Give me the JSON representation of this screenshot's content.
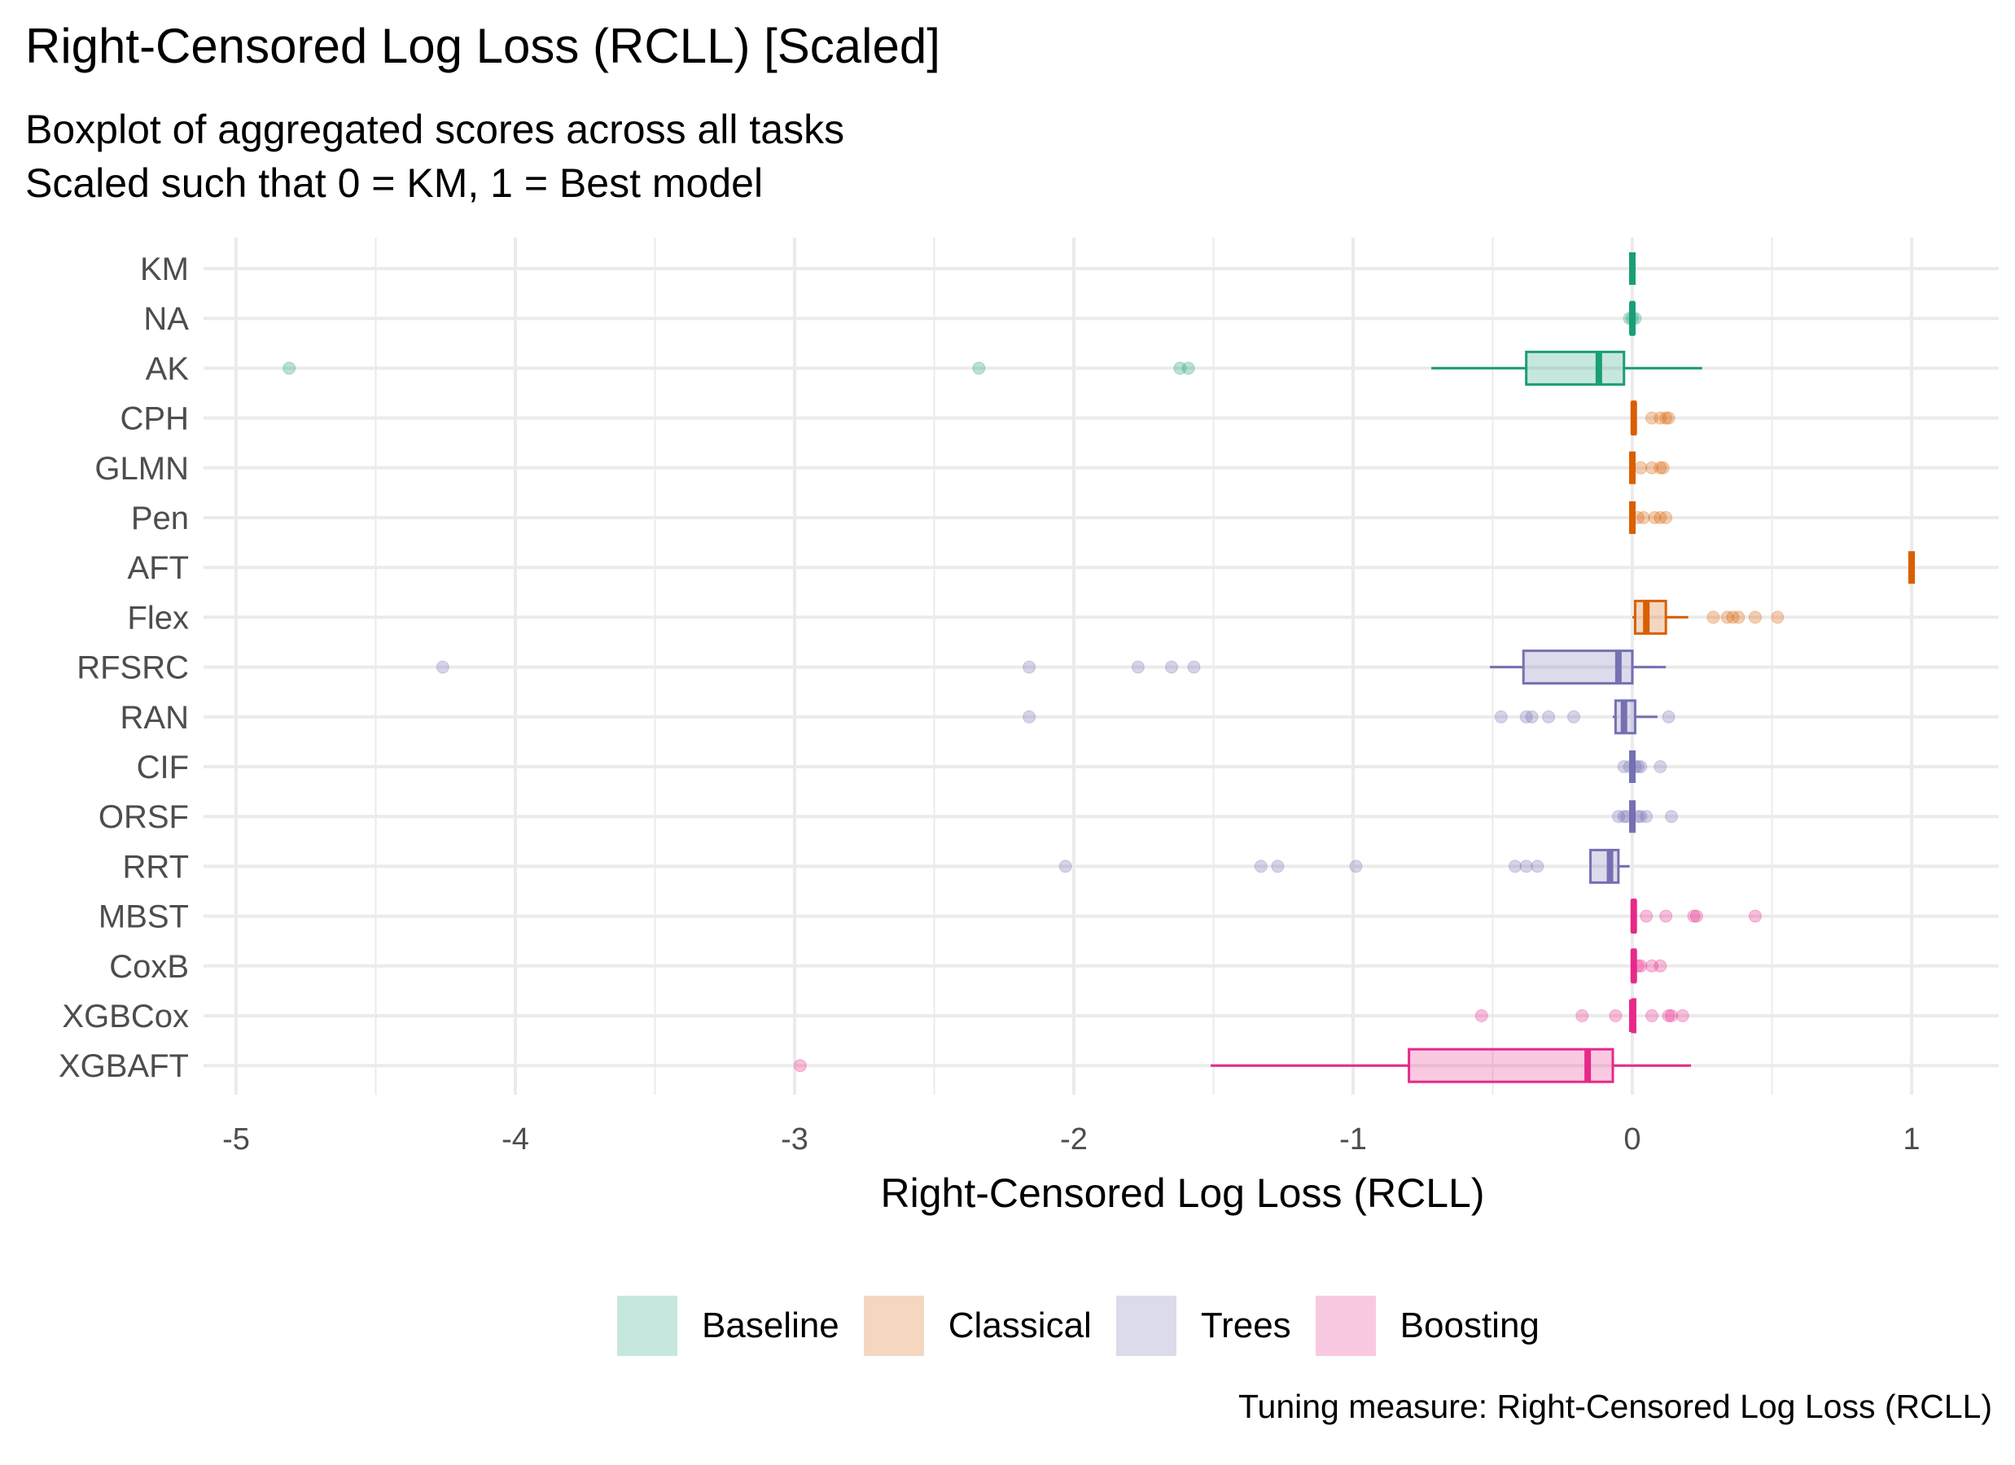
{
  "chart_data": {
    "type": "boxplot",
    "title": "Right-Censored Log Loss (RCLL) [Scaled]",
    "subtitle": [
      "Boxplot of aggregated scores across all tasks",
      "Scaled such that 0 = KM, 1 = Best model"
    ],
    "xlabel": "Right-Censored Log Loss (RCLL)",
    "ylabel": "",
    "caption": "Tuning measure: Right-Censored Log Loss (RCLL)",
    "xlim": [
      -5.08,
      1.28
    ],
    "xticks": [
      -5,
      -4,
      -3,
      -2,
      -1,
      0,
      1
    ],
    "xtick_labels": [
      "-5",
      "-4",
      "-3",
      "-2",
      "-1",
      "0",
      "1"
    ],
    "legend": {
      "position": "bottom",
      "entries": [
        "Baseline",
        "Classical",
        "Trees",
        "Boosting"
      ]
    },
    "group_colors": {
      "Baseline": "#1b9e77",
      "Classical": "#d95f02",
      "Trees": "#7570b3",
      "Boosting": "#e7298a"
    },
    "grid": true,
    "models": [
      {
        "name": "KM",
        "group": "Baseline",
        "whisker_low": 0,
        "q1": 0,
        "median": 0,
        "q3": 0,
        "whisker_high": 0,
        "outliers": []
      },
      {
        "name": "NA",
        "group": "Baseline",
        "whisker_low": -0.01,
        "q1": -0.005,
        "median": 0,
        "q3": 0.005,
        "whisker_high": 0.01,
        "outliers": [
          -0.01,
          0.0,
          0.01
        ]
      },
      {
        "name": "AK",
        "group": "Baseline",
        "whisker_low": -0.72,
        "q1": -0.38,
        "median": -0.12,
        "q3": -0.03,
        "whisker_high": 0.25,
        "outliers": [
          -4.81,
          -2.34,
          -1.62,
          -1.59
        ]
      },
      {
        "name": "CPH",
        "group": "Classical",
        "whisker_low": 0,
        "q1": 0,
        "median": 0.005,
        "q3": 0.01,
        "whisker_high": 0.01,
        "outliers": [
          0.07,
          0.1,
          0.12,
          0.13
        ]
      },
      {
        "name": "GLMN",
        "group": "Classical",
        "whisker_low": 0,
        "q1": 0,
        "median": 0,
        "q3": 0.005,
        "whisker_high": 0.005,
        "outliers": [
          0.03,
          0.07,
          0.1,
          0.11
        ]
      },
      {
        "name": "Pen",
        "group": "Classical",
        "whisker_low": 0,
        "q1": 0,
        "median": 0,
        "q3": 0.005,
        "whisker_high": 0.005,
        "outliers": [
          0.02,
          0.04,
          0.08,
          0.1,
          0.12
        ]
      },
      {
        "name": "AFT",
        "group": "Classical",
        "whisker_low": 1,
        "q1": 1,
        "median": 1,
        "q3": 1,
        "whisker_high": 1,
        "outliers": []
      },
      {
        "name": "Flex",
        "group": "Classical",
        "whisker_low": 0,
        "q1": 0.01,
        "median": 0.05,
        "q3": 0.12,
        "whisker_high": 0.2,
        "outliers": [
          0.29,
          0.34,
          0.36,
          0.38,
          0.44,
          0.52
        ]
      },
      {
        "name": "RFSRC",
        "group": "Trees",
        "whisker_low": -0.51,
        "q1": -0.39,
        "median": -0.05,
        "q3": 0.0,
        "whisker_high": 0.12,
        "outliers": [
          -4.26,
          -2.16,
          -1.77,
          -1.65,
          -1.57
        ]
      },
      {
        "name": "RAN",
        "group": "Trees",
        "whisker_low": -0.07,
        "q1": -0.06,
        "median": -0.03,
        "q3": 0.01,
        "whisker_high": 0.09,
        "outliers": [
          -2.16,
          -0.47,
          -0.38,
          -0.36,
          -0.3,
          -0.21,
          0.13
        ]
      },
      {
        "name": "CIF",
        "group": "Trees",
        "whisker_low": 0,
        "q1": 0,
        "median": 0,
        "q3": 0.005,
        "whisker_high": 0.01,
        "outliers": [
          -0.03,
          -0.01,
          0.01,
          0.02,
          0.03,
          0.1
        ]
      },
      {
        "name": "ORSF",
        "group": "Trees",
        "whisker_low": 0,
        "q1": 0,
        "median": 0,
        "q3": 0.005,
        "whisker_high": 0.01,
        "outliers": [
          -0.05,
          -0.03,
          -0.02,
          0.02,
          0.03,
          0.05,
          0.14
        ]
      },
      {
        "name": "RRT",
        "group": "Trees",
        "whisker_low": -0.15,
        "q1": -0.15,
        "median": -0.08,
        "q3": -0.05,
        "whisker_high": -0.01,
        "outliers": [
          -2.03,
          -1.33,
          -1.27,
          -0.99,
          -0.42,
          -0.38,
          -0.34
        ]
      },
      {
        "name": "MBST",
        "group": "Boosting",
        "whisker_low": 0,
        "q1": 0,
        "median": 0.005,
        "q3": 0.01,
        "whisker_high": 0.01,
        "outliers": [
          0.05,
          0.12,
          0.22,
          0.23,
          0.44
        ]
      },
      {
        "name": "CoxB",
        "group": "Boosting",
        "whisker_low": 0,
        "q1": 0,
        "median": 0.005,
        "q3": 0.01,
        "whisker_high": 0.01,
        "outliers": [
          0.02,
          0.03,
          0.07,
          0.1
        ]
      },
      {
        "name": "XGBCox",
        "group": "Boosting",
        "whisker_low": 0,
        "q1": 0,
        "median": 0,
        "q3": 0.01,
        "whisker_high": 0.01,
        "outliers": [
          -0.54,
          -0.18,
          -0.06,
          0.07,
          0.13,
          0.14,
          0.18
        ]
      },
      {
        "name": "XGBAFT",
        "group": "Boosting",
        "whisker_low": -1.51,
        "q1": -0.8,
        "median": -0.16,
        "q3": -0.07,
        "whisker_high": 0.21,
        "outliers": [
          -2.98
        ]
      }
    ]
  }
}
